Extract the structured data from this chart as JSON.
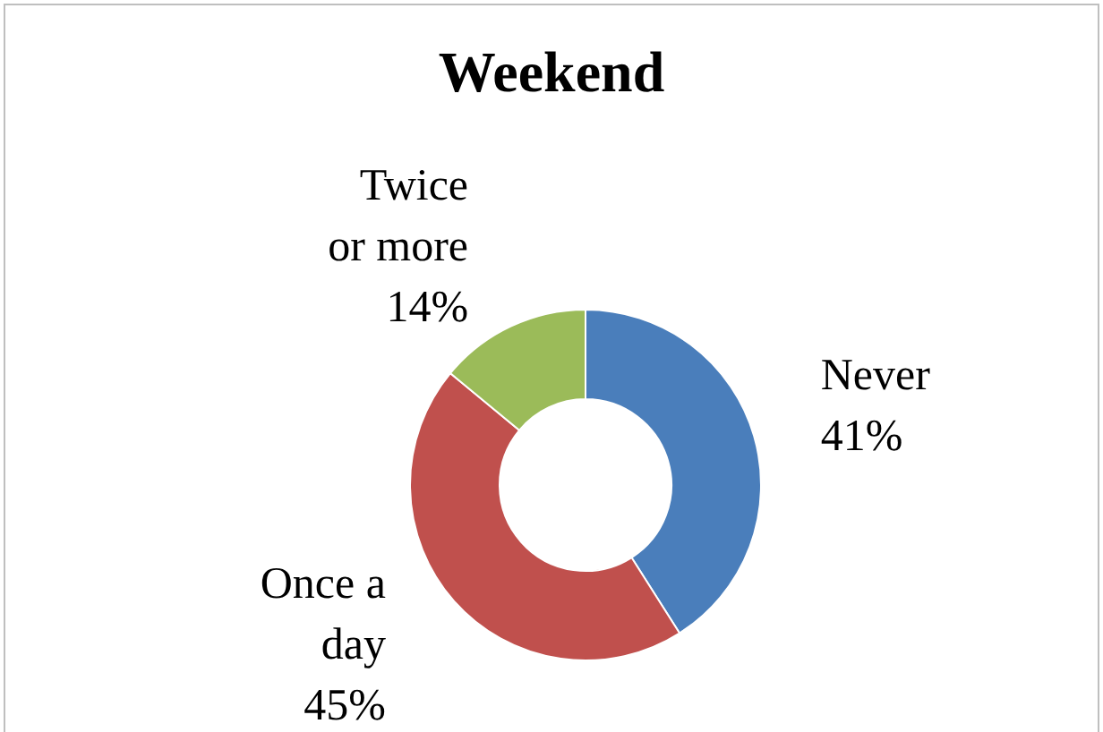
{
  "chart_data": {
    "type": "donut",
    "title": "Weekend",
    "categories": [
      "Never",
      "Once a day",
      "Twice or more"
    ],
    "values": [
      41,
      45,
      14
    ],
    "value_labels": [
      "41%",
      "45%",
      "14%"
    ],
    "colors": [
      "#4a7ebb",
      "#c0504d",
      "#9bbb59"
    ],
    "legend": false
  }
}
